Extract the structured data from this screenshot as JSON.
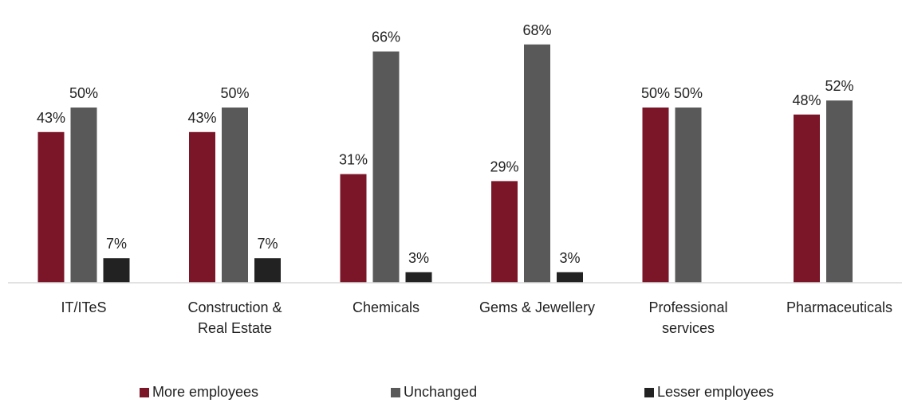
{
  "chart_data": {
    "type": "bar",
    "categories": [
      [
        "IT/ITeS"
      ],
      [
        "Construction &",
        "Real Estate"
      ],
      [
        "Chemicals"
      ],
      [
        "Gems & Jewellery"
      ],
      [
        "Professional",
        "services"
      ],
      [
        "Pharmaceuticals"
      ]
    ],
    "series": [
      {
        "name": "More employees",
        "color": "#7b1628",
        "values": [
          43,
          43,
          31,
          29,
          50,
          48
        ],
        "labels": [
          "43%",
          "43%",
          "31%",
          "29%",
          "50%",
          "48%"
        ]
      },
      {
        "name": "Unchanged",
        "color": "#595959",
        "values": [
          50,
          50,
          66,
          68,
          50,
          52
        ],
        "labels": [
          "50%",
          "50%",
          "66%",
          "68%",
          "50%",
          "52%"
        ]
      },
      {
        "name": "Lesser employees",
        "color": "#222222",
        "values": [
          7,
          7,
          3,
          3,
          null,
          null
        ],
        "labels": [
          "7%",
          "7%",
          "3%",
          "3%",
          null,
          null
        ]
      }
    ],
    "ylim": [
      0,
      75
    ],
    "grid": false,
    "legend_position": "bottom"
  }
}
